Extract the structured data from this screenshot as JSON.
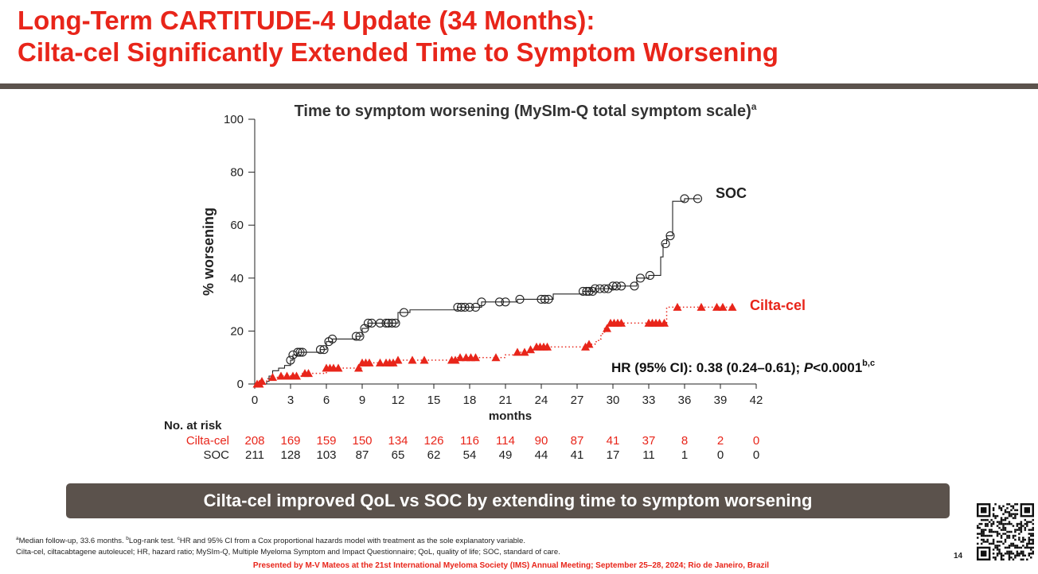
{
  "slide": {
    "title_line1": "Long-Term CARTITUDE-4 Update (34 Months):",
    "title_line2": "Cilta-cel Significantly Extended Time to Symptom Worsening",
    "banner": "Cilta-cel improved QoL vs SOC by extending time to symptom worsening",
    "footnote_a_mark": "a",
    "footnote_a": "Median follow-up, 33.6 months.",
    "footnote_b_mark": "b",
    "footnote_b": "Log-rank test.",
    "footnote_c_mark": "c",
    "footnote_c": "HR and 95% CI from a Cox proportional hazards model with treatment as the sole explanatory variable.",
    "abbreviations": "Cilta-cel, ciltacabtagene autoleucel; HR, hazard ratio; MySIm-Q, Multiple Myeloma Symptom and Impact Questionnaire; QoL, quality of life; SOC, standard of care.",
    "page_number": "14",
    "presenter": "Presented by M-V Mateos at the 21st International Myeloma Society (IMS) Annual Meeting; September 25–28, 2024; Rio de Janeiro, Brazil",
    "qr_icon": "qr-code-icon"
  },
  "chart_data": {
    "type": "line",
    "title": "Time to symptom worsening (MySIm-Q total symptom scale)",
    "title_sup": "a",
    "xlabel": "months",
    "ylabel": "% worsening",
    "xlim": [
      0,
      42
    ],
    "ylim": [
      0,
      100
    ],
    "x_ticks": [
      "0",
      "3",
      "6",
      "9",
      "12",
      "15",
      "18",
      "21",
      "24",
      "27",
      "30",
      "33",
      "36",
      "39",
      "42"
    ],
    "y_ticks": [
      "0",
      "20",
      "40",
      "60",
      "80",
      "100"
    ],
    "hr_text_prefix": "HR (95% CI): 0.38 (0.24–0.61); ",
    "hr_text_p": "P",
    "hr_text_value": "<0.0001",
    "hr_text_sup": "b,c",
    "series": [
      {
        "name": "SOC",
        "color": "#222222",
        "line_style": "solid",
        "marker": "circle",
        "steps": [
          [
            0,
            0
          ],
          [
            1,
            1
          ],
          [
            1.2,
            3
          ],
          [
            1.5,
            5
          ],
          [
            2,
            6
          ],
          [
            2.5,
            7
          ],
          [
            3,
            9
          ],
          [
            3.2,
            11
          ],
          [
            3.6,
            12
          ],
          [
            5.5,
            13
          ],
          [
            6,
            16
          ],
          [
            6.5,
            17
          ],
          [
            8.5,
            18
          ],
          [
            9,
            21
          ],
          [
            9.5,
            23
          ],
          [
            12,
            27
          ],
          [
            13,
            28
          ],
          [
            17,
            29
          ],
          [
            19,
            31
          ],
          [
            22,
            32
          ],
          [
            25,
            34
          ],
          [
            27.5,
            35
          ],
          [
            28.5,
            36
          ],
          [
            30,
            37
          ],
          [
            32,
            40
          ],
          [
            33,
            41
          ],
          [
            34,
            48
          ],
          [
            34.2,
            53
          ],
          [
            34.5,
            56
          ],
          [
            35,
            69
          ],
          [
            36,
            70
          ],
          [
            37.3,
            70
          ]
        ],
        "censor_x": [
          3,
          3.2,
          3.6,
          3.8,
          4,
          5.5,
          5.8,
          6.2,
          6.5,
          8.5,
          8.8,
          9.2,
          9.5,
          9.8,
          10.5,
          11,
          11.2,
          11.5,
          11.8,
          12.5,
          17,
          17.3,
          17.6,
          18,
          18.5,
          19,
          20.5,
          21,
          22.2,
          24,
          24.3,
          24.6,
          27.5,
          27.8,
          28,
          28.3,
          28.5,
          28.9,
          29.3,
          29.6,
          30,
          30.3,
          30.7,
          31.8,
          32.3,
          33.1,
          34.4,
          34.8,
          36,
          37.1
        ]
      },
      {
        "name": "Cilta-cel",
        "color": "#e8251a",
        "line_style": "dotted",
        "marker": "triangle",
        "steps": [
          [
            0,
            0
          ],
          [
            0.5,
            1
          ],
          [
            1,
            2
          ],
          [
            1.5,
            2.5
          ],
          [
            2,
            3
          ],
          [
            4,
            4
          ],
          [
            6,
            6
          ],
          [
            9,
            8
          ],
          [
            12,
            9
          ],
          [
            17,
            10
          ],
          [
            21,
            11
          ],
          [
            22,
            12
          ],
          [
            23,
            13
          ],
          [
            23.5,
            14
          ],
          [
            28,
            15
          ],
          [
            28.5,
            16
          ],
          [
            28.8,
            17
          ],
          [
            29,
            19
          ],
          [
            29.3,
            21
          ],
          [
            29.6,
            23
          ],
          [
            33,
            23
          ],
          [
            34.5,
            29
          ],
          [
            40.2,
            29
          ]
        ],
        "censor_x": [
          0.2,
          0.4,
          0.6,
          1.5,
          2.2,
          2.7,
          3.2,
          3.5,
          4.2,
          4.5,
          6,
          6.3,
          6.6,
          7,
          8.7,
          9,
          9.3,
          9.6,
          10.5,
          11,
          11.3,
          11.6,
          12,
          13.2,
          14.2,
          16.5,
          16.8,
          17.2,
          17.7,
          18.1,
          18.5,
          20.2,
          22,
          22.6,
          23.1,
          23.6,
          23.9,
          24.2,
          24.5,
          27.7,
          28,
          29.5,
          29.8,
          30.1,
          30.4,
          30.7,
          33,
          33.3,
          33.6,
          33.9,
          34.3,
          35.4,
          37.4,
          38.7,
          39.2,
          40
        ]
      }
    ],
    "numbers_at_risk": {
      "header": "No. at risk",
      "rows": [
        {
          "name": "Cilta-cel",
          "values": [
            "208",
            "169",
            "159",
            "150",
            "134",
            "126",
            "116",
            "114",
            "90",
            "87",
            "41",
            "37",
            "8",
            "2",
            "0"
          ]
        },
        {
          "name": "SOC",
          "values": [
            "211",
            "128",
            "103",
            "87",
            "65",
            "62",
            "54",
            "49",
            "44",
            "41",
            "17",
            "11",
            "1",
            "0",
            "0"
          ]
        }
      ]
    }
  }
}
